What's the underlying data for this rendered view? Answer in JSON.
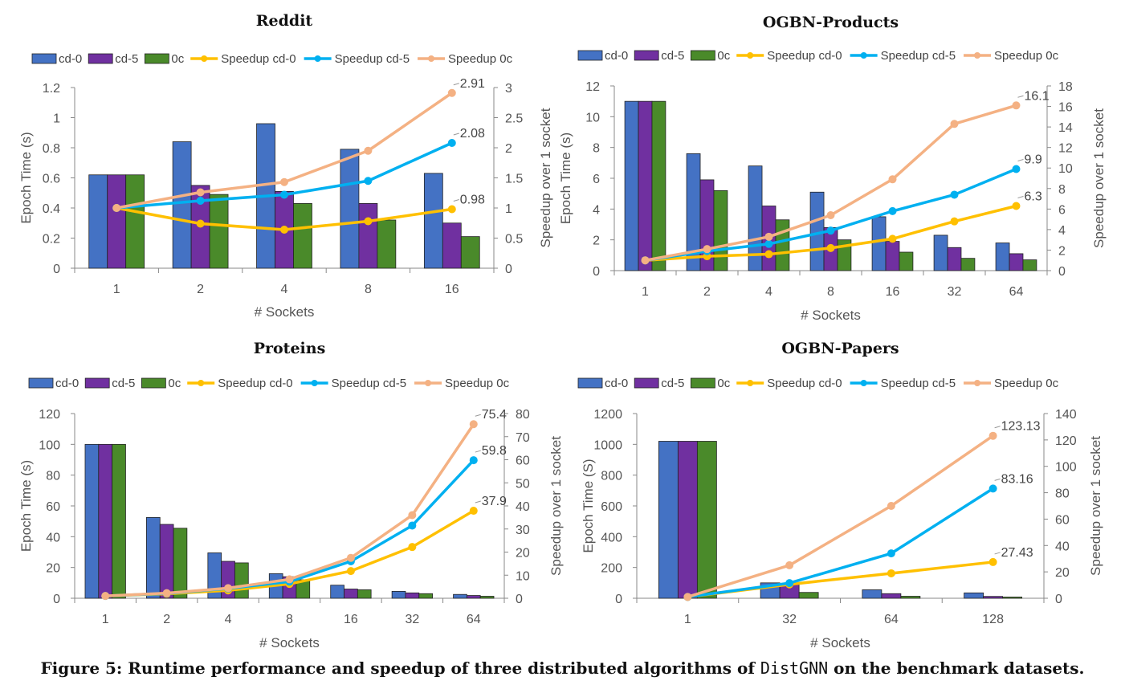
{
  "chart_data": [
    {
      "type": "bar",
      "title": "Reddit",
      "categories": [
        "1",
        "2",
        "4",
        "8",
        "16"
      ],
      "xlabel": "# Sockets",
      "ylabel": "Epoch Time (s)",
      "y2label": "Speedup over 1 socket",
      "ylim": [
        0,
        1.2
      ],
      "ytick_labels": [
        "0",
        "0.2",
        "0.4",
        "0.6",
        "0.8",
        "1",
        "1.2"
      ],
      "y2lim": [
        0,
        3
      ],
      "y2tick_labels": [
        "0",
        "0.5",
        "1",
        "1.5",
        "2",
        "2.5",
        "3"
      ],
      "series": [
        {
          "name": "cd-0",
          "kind": "bar",
          "color": "#4472c4",
          "values": [
            0.62,
            0.84,
            0.96,
            0.79,
            0.63
          ]
        },
        {
          "name": "cd-5",
          "kind": "bar",
          "color": "#7030a0",
          "values": [
            0.62,
            0.55,
            0.51,
            0.43,
            0.3
          ]
        },
        {
          "name": "0c",
          "kind": "bar",
          "color": "#4a8a2a",
          "values": [
            0.62,
            0.49,
            0.43,
            0.32,
            0.21
          ]
        },
        {
          "name": "Speedup cd-0",
          "kind": "line",
          "axis": "right",
          "color": "#ffc000",
          "values": [
            1,
            0.74,
            0.64,
            0.78,
            0.98
          ]
        },
        {
          "name": "Speedup cd-5",
          "kind": "line",
          "axis": "right",
          "color": "#00b0f0",
          "values": [
            1,
            1.12,
            1.22,
            1.45,
            2.08
          ]
        },
        {
          "name": "Speedup 0c",
          "kind": "line",
          "axis": "right",
          "color": "#f4b183",
          "values": [
            1,
            1.26,
            1.43,
            1.95,
            2.91
          ]
        }
      ],
      "annotations": [
        "2.91",
        "2.08",
        "0.98"
      ],
      "legend": "top",
      "grid": false
    },
    {
      "type": "bar",
      "title": "OGBN-Products",
      "categories": [
        "1",
        "2",
        "4",
        "8",
        "16",
        "32",
        "64"
      ],
      "xlabel": "# Sockets",
      "ylabel": "Epoch Time (s)",
      "y2label": "Speedup over 1 socket",
      "ylim": [
        0,
        12
      ],
      "ytick_labels": [
        "0",
        "2",
        "4",
        "6",
        "8",
        "10",
        "12"
      ],
      "y2lim": [
        0,
        18
      ],
      "y2tick_labels": [
        "0",
        "2",
        "4",
        "6",
        "8",
        "10",
        "12",
        "14",
        "16",
        "18"
      ],
      "series": [
        {
          "name": "cd-0",
          "kind": "bar",
          "color": "#4472c4",
          "values": [
            11,
            7.6,
            6.8,
            5.1,
            3.5,
            2.3,
            1.8
          ]
        },
        {
          "name": "cd-5",
          "kind": "bar",
          "color": "#7030a0",
          "values": [
            11,
            5.9,
            4.2,
            2.8,
            1.9,
            1.5,
            1.1
          ]
        },
        {
          "name": "0c",
          "kind": "bar",
          "color": "#4a8a2a",
          "values": [
            11,
            5.2,
            3.3,
            2.0,
            1.2,
            0.8,
            0.7
          ]
        },
        {
          "name": "Speedup cd-0",
          "kind": "line",
          "axis": "right",
          "color": "#ffc000",
          "values": [
            1,
            1.4,
            1.6,
            2.2,
            3.1,
            4.8,
            6.3
          ]
        },
        {
          "name": "Speedup cd-5",
          "kind": "line",
          "axis": "right",
          "color": "#00b0f0",
          "values": [
            1,
            1.9,
            2.6,
            3.9,
            5.8,
            7.4,
            9.9
          ]
        },
        {
          "name": "Speedup 0c",
          "kind": "line",
          "axis": "right",
          "color": "#f4b183",
          "values": [
            1,
            2.1,
            3.3,
            5.4,
            8.9,
            14.3,
            16.1
          ]
        }
      ],
      "annotations": [
        "16.1",
        "9.9",
        "6.3"
      ],
      "legend": "top",
      "grid": false
    },
    {
      "type": "bar",
      "title": "Proteins",
      "categories": [
        "1",
        "2",
        "4",
        "8",
        "16",
        "32",
        "64"
      ],
      "xlabel": "# Sockets",
      "ylabel": "Epoch Time (s)",
      "y2label": "Speedup over 1 socket",
      "ylim": [
        0,
        120
      ],
      "ytick_labels": [
        "0",
        "20",
        "40",
        "60",
        "80",
        "100",
        "120"
      ],
      "y2lim": [
        0,
        80
      ],
      "y2tick_labels": [
        "0",
        "10",
        "20",
        "30",
        "40",
        "50",
        "60",
        "70",
        "80"
      ],
      "series": [
        {
          "name": "cd-0",
          "kind": "bar",
          "color": "#4472c4",
          "values": [
            100,
            52.5,
            29.5,
            16,
            8.5,
            4.5,
            2.5
          ]
        },
        {
          "name": "cd-5",
          "kind": "bar",
          "color": "#7030a0",
          "values": [
            100,
            48,
            24,
            14,
            6,
            3.5,
            1.8
          ]
        },
        {
          "name": "0c",
          "kind": "bar",
          "color": "#4a8a2a",
          "values": [
            100,
            45.5,
            23,
            12,
            5.5,
            3,
            1.3
          ]
        },
        {
          "name": "Speedup cd-0",
          "kind": "line",
          "axis": "right",
          "color": "#ffc000",
          "values": [
            1,
            1.9,
            3.4,
            6.2,
            11.8,
            22.2,
            37.9
          ]
        },
        {
          "name": "Speedup cd-5",
          "kind": "line",
          "axis": "right",
          "color": "#00b0f0",
          "values": [
            1,
            2.1,
            4.2,
            7.2,
            16,
            31.5,
            59.8
          ]
        },
        {
          "name": "Speedup 0c",
          "kind": "line",
          "axis": "right",
          "color": "#f4b183",
          "values": [
            1,
            2.2,
            4.4,
            8.2,
            17.5,
            36,
            75.4
          ]
        }
      ],
      "annotations": [
        "75.4",
        "59.8",
        "37.9"
      ],
      "legend": "top",
      "grid": false
    },
    {
      "type": "bar",
      "title": "OGBN-Papers",
      "categories": [
        "1",
        "32",
        "64",
        "128"
      ],
      "xlabel": "# Sockets",
      "ylabel": "Epoch Time (S)",
      "y2label": "Speedup over 1 socket",
      "ylim": [
        0,
        1200
      ],
      "ytick_labels": [
        "0",
        "200",
        "400",
        "600",
        "800",
        "1000",
        "1200"
      ],
      "y2lim": [
        0,
        140
      ],
      "y2tick_labels": [
        "0",
        "20",
        "40",
        "60",
        "80",
        "100",
        "120",
        "140"
      ],
      "series": [
        {
          "name": "cd-0",
          "kind": "bar",
          "color": "#4472c4",
          "values": [
            1020,
            100,
            55,
            35
          ]
        },
        {
          "name": "cd-5",
          "kind": "bar",
          "color": "#7030a0",
          "values": [
            1020,
            97,
            30,
            12
          ]
        },
        {
          "name": "0c",
          "kind": "bar",
          "color": "#4a8a2a",
          "values": [
            1020,
            38,
            13,
            8
          ]
        },
        {
          "name": "Speedup cd-0",
          "kind": "line",
          "axis": "right",
          "color": "#ffc000",
          "values": [
            1,
            10.5,
            18.9,
            27.43
          ]
        },
        {
          "name": "Speedup cd-5",
          "kind": "line",
          "axis": "right",
          "color": "#00b0f0",
          "values": [
            1,
            11.5,
            34,
            83.16
          ]
        },
        {
          "name": "Speedup 0c",
          "kind": "line",
          "axis": "right",
          "color": "#f4b183",
          "values": [
            1,
            25,
            70,
            123.13
          ]
        }
      ],
      "annotations": [
        "123.13",
        "83.16",
        "27.43"
      ],
      "legend": "top",
      "grid": false
    }
  ],
  "caption": {
    "prefix": "Figure 5: Runtime performance and speedup of three distributed algorithms of ",
    "code": "DistGNN",
    "suffix": " on the benchmark datasets."
  }
}
